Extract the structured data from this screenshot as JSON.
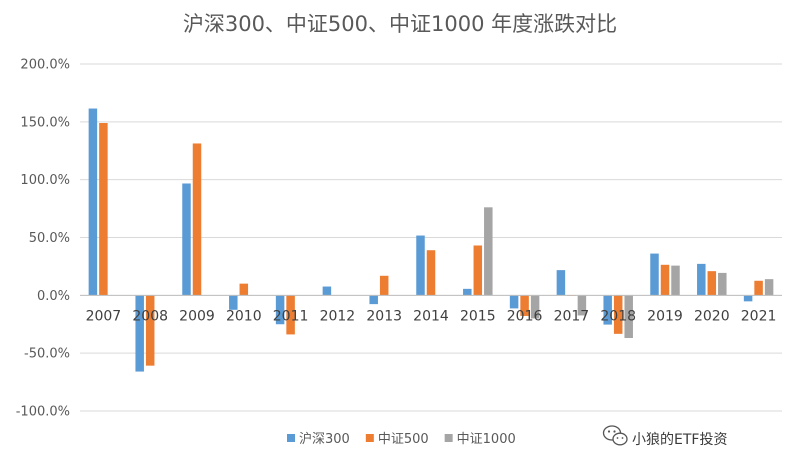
{
  "chart_data": {
    "type": "bar",
    "title": "沪深300、中证500、中证1000 年度涨跌对比",
    "categories": [
      "2007",
      "2008",
      "2009",
      "2010",
      "2011",
      "2012",
      "2013",
      "2014",
      "2015",
      "2016",
      "2017",
      "2018",
      "2019",
      "2020",
      "2021"
    ],
    "series": [
      {
        "name": "沪深300",
        "color": "#5B9BD5",
        "values": [
          161.5,
          -65.9,
          96.7,
          -12.5,
          -25.0,
          7.6,
          -7.6,
          51.7,
          5.6,
          -11.3,
          21.8,
          -25.3,
          36.1,
          27.2,
          -5.2
        ]
      },
      {
        "name": "中证500",
        "color": "#ED7D31",
        "values": [
          149.0,
          -60.8,
          131.3,
          10.1,
          -33.8,
          0.3,
          16.9,
          39.0,
          43.1,
          -17.8,
          -0.2,
          -33.3,
          26.4,
          20.9,
          12.6
        ]
      },
      {
        "name": "中证1000",
        "color": "#A5A5A5",
        "values": [
          null,
          null,
          null,
          null,
          null,
          null,
          null,
          null,
          76.1,
          -20.0,
          -17.4,
          -36.9,
          25.7,
          19.4,
          14.0
        ]
      }
    ],
    "ylim": [
      -100,
      200
    ],
    "yticks": [
      "200.0%",
      "150.0%",
      "100.0%",
      "50.0%",
      "0.0%",
      "-50.0%",
      "-100.0%"
    ],
    "ytick_values": [
      200,
      150,
      100,
      50,
      0,
      -50,
      -100
    ],
    "grid": true,
    "legend": "bottom"
  },
  "watermark": {
    "text": "小狼的ETF投资",
    "icon": "wechat-icon"
  }
}
